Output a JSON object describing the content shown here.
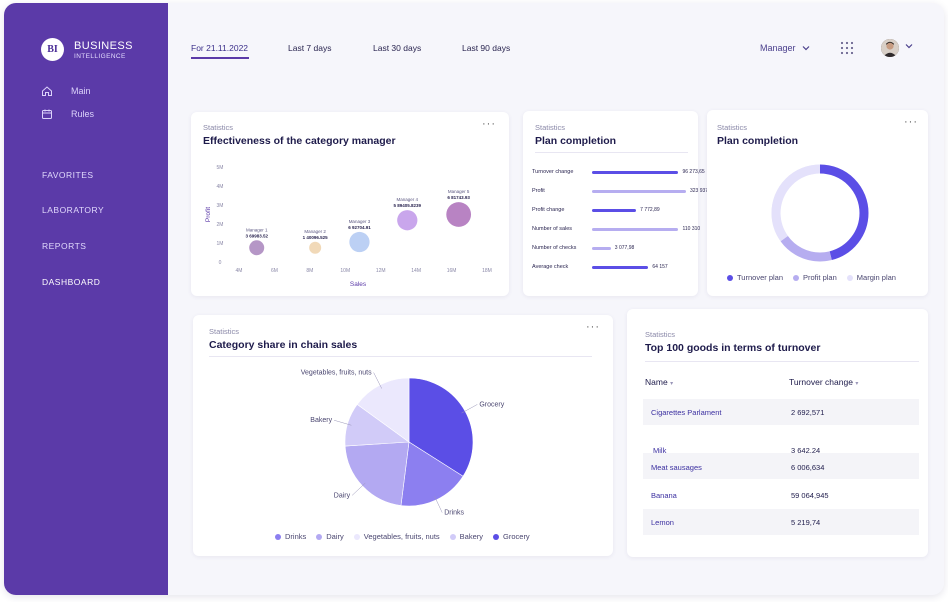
{
  "app": {
    "logo_mark": "BI",
    "title": "BUSINESS",
    "subtitle": "INTELLIGENCE"
  },
  "sidebar": {
    "nav": [
      {
        "label": "Main",
        "icon": "home-icon"
      },
      {
        "label": "Rules",
        "icon": "calendar-icon"
      }
    ],
    "menu": [
      "FAVORITES",
      "LABORATORY",
      "REPORTS",
      "DASHBOARD"
    ],
    "active_menu": "DASHBOARD"
  },
  "header": {
    "tabs": [
      "For 21.11.2022",
      "Last 7 days",
      "Last 30 days",
      "Last 90 days"
    ],
    "active_tab": "For 21.11.2022",
    "role_select": "Manager"
  },
  "colors": {
    "brand": "#5b3aa8",
    "primary": "#5b4ee6",
    "light": "#b6adf0",
    "lighter": "#dcd8fa"
  },
  "effectiveness": {
    "kicker": "Statistics",
    "title": "Effectiveness of the category manager",
    "chart_data": {
      "type": "scatter",
      "xlabel": "Sales",
      "ylabel": "Profit",
      "x_ticks": [
        "4M",
        "6M",
        "8M",
        "10M",
        "12M",
        "14M",
        "16M",
        "18M"
      ],
      "y_ticks": [
        "0",
        "1M",
        "2M",
        "3M",
        "4M",
        "5M"
      ],
      "xlim": [
        4,
        18
      ],
      "ylim": [
        0,
        5
      ],
      "points": [
        {
          "name": "Manager 1",
          "label": "3 69983.52",
          "x": 5.0,
          "y": 0.75,
          "size": 1.0,
          "color": "#b596c6"
        },
        {
          "name": "Manager 2",
          "label": "1 40096.525",
          "x": 8.3,
          "y": 0.75,
          "size": 0.8,
          "color": "#f1d9b8"
        },
        {
          "name": "Manager 3",
          "label": "6 92704.91",
          "x": 10.8,
          "y": 1.05,
          "size": 1.35,
          "color": "#bcd0f4"
        },
        {
          "name": "Manager 4",
          "label": "5 89405.8239",
          "x": 13.5,
          "y": 2.2,
          "size": 1.35,
          "color": "#c9a6ec"
        },
        {
          "name": "Manager 5",
          "label": "6 81743.93",
          "x": 16.4,
          "y": 2.5,
          "size": 1.65,
          "color": "#b883c3"
        }
      ]
    }
  },
  "plan_bars": {
    "kicker": "Statistics",
    "title": "Plan completion",
    "chart_data": {
      "type": "bar",
      "orientation": "horizontal",
      "categories": [
        "Turnover change",
        "Profit",
        "Profit change",
        "Number of sales",
        "Number of checks",
        "Average check"
      ],
      "value_labels": [
        "96 273,65",
        "323 937",
        "7 772,89",
        "110 310",
        "3 077,98",
        "64 157"
      ],
      "fractions": [
        0.92,
        1.0,
        0.47,
        0.92,
        0.2,
        0.6
      ],
      "colors": [
        "#5b4ee6",
        "#b6adf0",
        "#5b4ee6",
        "#b6adf0",
        "#b6adf0",
        "#5b4ee6"
      ]
    }
  },
  "plan_donut": {
    "kicker": "Statistics",
    "title": "Plan completion",
    "chart_data": {
      "type": "pie",
      "style": "donut",
      "series": [
        {
          "name": "Turnover plan",
          "value": 46,
          "color": "#5b4ee6"
        },
        {
          "name": "Profit plan",
          "value": 19,
          "color": "#b6adf0"
        },
        {
          "name": "Margin plan",
          "value": 35,
          "color": "#e4e1fb"
        }
      ]
    }
  },
  "category_share": {
    "kicker": "Statistics",
    "title": "Category share in chain sales",
    "chart_data": {
      "type": "pie",
      "series": [
        {
          "name": "Grocery",
          "value": 34,
          "color": "#5b4ee6"
        },
        {
          "name": "Drinks",
          "value": 18,
          "color": "#8c7ff0"
        },
        {
          "name": "Dairy",
          "value": 22,
          "color": "#b3a9f2"
        },
        {
          "name": "Bakery",
          "value": 11,
          "color": "#d1cbf8"
        },
        {
          "name": "Vegetables, fruits, nuts",
          "value": 15,
          "color": "#ebe8fd"
        }
      ],
      "legend": [
        "Drinks",
        "Dairy",
        "Vegetables, fruits, nuts",
        "Bakery",
        "Grocery"
      ]
    }
  },
  "top_goods": {
    "kicker": "Statistics",
    "title": "Top 100 goods in terms of turnover",
    "columns": [
      "Name",
      "Turnover change"
    ],
    "rows": [
      {
        "name": "Cigarettes Parlament",
        "value": "2 692,571"
      },
      {
        "name": "Milk",
        "value": "3 642,24"
      },
      {
        "name": "Meat sausages",
        "value": "6 006,634"
      },
      {
        "name": "Banana",
        "value": "59 064,945"
      },
      {
        "name": "Lemon",
        "value": "5 219,74"
      }
    ]
  },
  "menu_dots": "···"
}
